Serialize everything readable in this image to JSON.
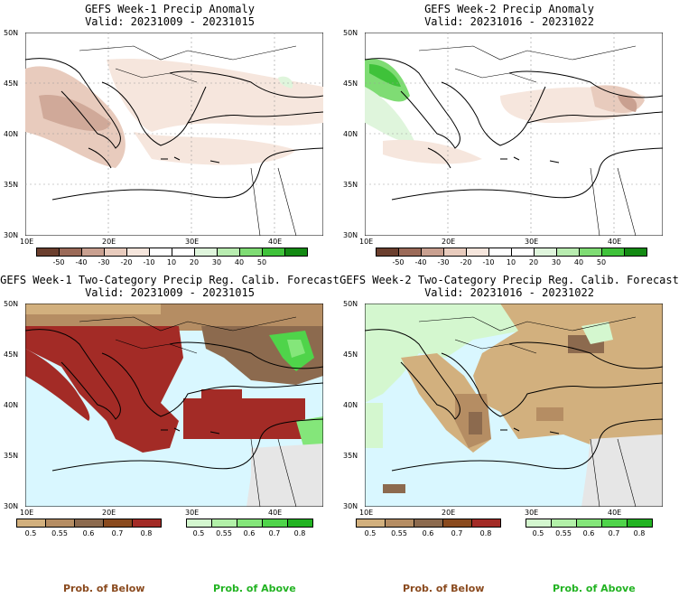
{
  "panels": [
    {
      "title": "GEFS Week-1 Precip Anomaly",
      "valid": "Valid: 20231009 - 20231015",
      "lat_labels": [
        "50N",
        "45N",
        "40N",
        "35N",
        "30N"
      ],
      "lon_labels": [
        "10E",
        "20E",
        "30E",
        "40E"
      ],
      "colorbar": {
        "colors": [
          "#6b3f2e",
          "#9b6a58",
          "#c9a090",
          "#e8cbbd",
          "#f6e6dd",
          "#ffffff",
          "#ffffff",
          "#dff5dc",
          "#b8ecb0",
          "#7fdc74",
          "#3fc23a",
          "#138a13"
        ],
        "labels": [
          "-50",
          "-40",
          "-30",
          "-20",
          "-10",
          "10",
          "20",
          "30",
          "40",
          "50"
        ]
      }
    },
    {
      "title": "GEFS Week-2 Precip Anomaly",
      "valid": "Valid: 20231016 - 20231022",
      "lat_labels": [
        "50N",
        "45N",
        "40N",
        "35N",
        "30N"
      ],
      "lon_labels": [
        "10E",
        "20E",
        "30E",
        "40E"
      ],
      "colorbar": {
        "colors": [
          "#6b3f2e",
          "#9b6a58",
          "#c9a090",
          "#e8cbbd",
          "#f6e6dd",
          "#ffffff",
          "#ffffff",
          "#dff5dc",
          "#b8ecb0",
          "#7fdc74",
          "#3fc23a",
          "#138a13"
        ],
        "labels": [
          "-50",
          "-40",
          "-30",
          "-20",
          "-10",
          "10",
          "20",
          "30",
          "40",
          "50"
        ]
      }
    },
    {
      "title": "GEFS Week-1 Two-Category Precip Reg. Calib. Forecast",
      "valid": "Valid: 20231009 - 20231015",
      "lat_labels": [
        "50N",
        "45N",
        "40N",
        "35N",
        "30N"
      ],
      "lon_labels": [
        "10E",
        "20E",
        "30E",
        "40E"
      ],
      "below_colorbar": {
        "colors": [
          "#d2b07e",
          "#b58d63",
          "#8c6a4e",
          "#8a4a1e",
          "#a32b26"
        ],
        "labels": [
          "0.5",
          "0.55",
          "0.6",
          "0.7",
          "0.8"
        ]
      },
      "above_colorbar": {
        "colors": [
          "#d4f7cf",
          "#b2f0a8",
          "#84e67a",
          "#4fd44a",
          "#22b322"
        ],
        "labels": [
          "0.5",
          "0.55",
          "0.6",
          "0.7",
          "0.8"
        ]
      }
    },
    {
      "title": "GEFS Week-2 Two-Category Precip Reg. Calib. Forecast",
      "valid": "Valid: 20231016 - 20231022",
      "lat_labels": [
        "50N",
        "45N",
        "40N",
        "35N",
        "30N"
      ],
      "lon_labels": [
        "10E",
        "20E",
        "30E",
        "40E"
      ],
      "below_colorbar": {
        "colors": [
          "#d2b07e",
          "#b58d63",
          "#8c6a4e",
          "#8a4a1e",
          "#a32b26"
        ],
        "labels": [
          "0.5",
          "0.55",
          "0.6",
          "0.7",
          "0.8"
        ]
      },
      "above_colorbar": {
        "colors": [
          "#d4f7cf",
          "#b2f0a8",
          "#84e67a",
          "#4fd44a",
          "#22b322"
        ],
        "labels": [
          "0.5",
          "0.55",
          "0.6",
          "0.7",
          "0.8"
        ]
      }
    }
  ],
  "footer": {
    "below_label": "Prob. of Below",
    "above_label": "Prob. of Above",
    "below_color": "#8a4a1e",
    "above_color": "#22b322"
  },
  "colors": {
    "sea_fill": "#d9f7ff",
    "land_gray": "#e6e6e6",
    "wet_red": "#a32b26",
    "dry_tan": "#d2b07e"
  }
}
